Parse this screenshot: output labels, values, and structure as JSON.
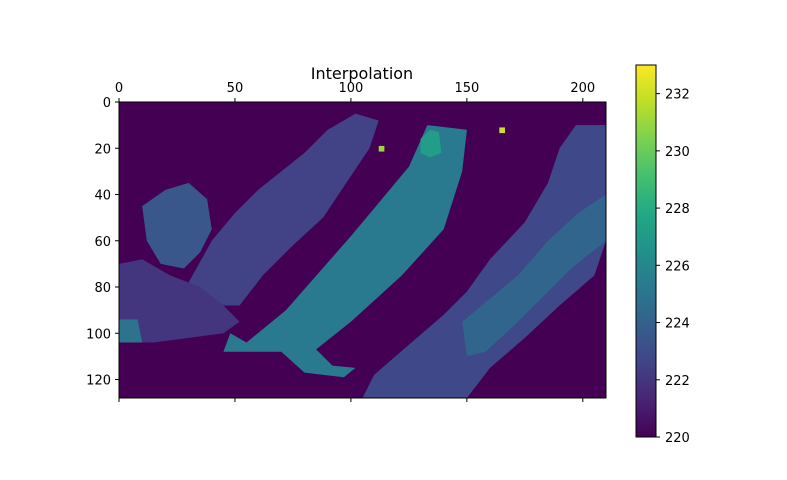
{
  "chart_data": {
    "type": "heatmap",
    "title": "Interpolation",
    "xlabel": "",
    "ylabel": "",
    "x_range": [
      0,
      210
    ],
    "y_range": [
      0,
      128
    ],
    "x_ticks": [
      0,
      50,
      100,
      150,
      200
    ],
    "y_ticks": [
      0,
      20,
      40,
      60,
      80,
      100,
      120
    ],
    "x_axis_position": "top",
    "y_axis_direction": "downward",
    "colormap": "viridis",
    "colorbar": {
      "min": 220,
      "max": 233,
      "ticks": [
        220,
        222,
        224,
        226,
        228,
        230,
        232
      ]
    },
    "background_value": 220,
    "grid": false,
    "regions": [
      {
        "name": "main diagonal band",
        "value": 225.3,
        "polygon": [
          [
            55,
            104
          ],
          [
            72,
            90
          ],
          [
            100,
            58
          ],
          [
            125,
            28
          ],
          [
            133,
            10
          ],
          [
            150,
            12
          ],
          [
            148,
            30
          ],
          [
            140,
            55
          ],
          [
            122,
            75
          ],
          [
            100,
            95
          ],
          [
            85,
            107
          ],
          [
            92,
            114
          ],
          [
            102,
            115
          ],
          [
            97,
            119
          ],
          [
            80,
            117
          ],
          [
            70,
            108
          ],
          [
            45,
            108
          ],
          [
            48,
            100
          ]
        ]
      },
      {
        "name": "right diagonal band",
        "value": 222.8,
        "polygon": [
          [
            105,
            128
          ],
          [
            110,
            118
          ],
          [
            125,
            105
          ],
          [
            140,
            92
          ],
          [
            150,
            82
          ],
          [
            160,
            68
          ],
          [
            175,
            52
          ],
          [
            185,
            35
          ],
          [
            190,
            20
          ],
          [
            197,
            10
          ],
          [
            210,
            10
          ],
          [
            210,
            60
          ],
          [
            205,
            75
          ],
          [
            190,
            88
          ],
          [
            175,
            102
          ],
          [
            160,
            115
          ],
          [
            150,
            128
          ]
        ]
      },
      {
        "name": "right band highlight",
        "value": 224.2,
        "polygon": [
          [
            148,
            95
          ],
          [
            160,
            85
          ],
          [
            172,
            75
          ],
          [
            185,
            60
          ],
          [
            198,
            48
          ],
          [
            210,
            40
          ],
          [
            210,
            60
          ],
          [
            195,
            72
          ],
          [
            182,
            85
          ],
          [
            170,
            97
          ],
          [
            158,
            108
          ],
          [
            150,
            110
          ]
        ]
      },
      {
        "name": "upper-left patch",
        "value": 222.5,
        "polygon": [
          [
            40,
            60
          ],
          [
            50,
            48
          ],
          [
            60,
            38
          ],
          [
            70,
            30
          ],
          [
            80,
            22
          ],
          [
            90,
            12
          ],
          [
            102,
            5
          ],
          [
            112,
            8
          ],
          [
            108,
            20
          ],
          [
            98,
            35
          ],
          [
            88,
            50
          ],
          [
            75,
            62
          ],
          [
            62,
            75
          ],
          [
            52,
            88
          ],
          [
            40,
            88
          ],
          [
            30,
            78
          ]
        ]
      },
      {
        "name": "left-center patch",
        "value": 223.5,
        "polygon": [
          [
            10,
            45
          ],
          [
            20,
            38
          ],
          [
            30,
            35
          ],
          [
            38,
            42
          ],
          [
            40,
            55
          ],
          [
            35,
            65
          ],
          [
            28,
            72
          ],
          [
            18,
            70
          ],
          [
            12,
            60
          ]
        ]
      },
      {
        "name": "lower-left patch",
        "value": 222.0,
        "polygon": [
          [
            0,
            70
          ],
          [
            10,
            68
          ],
          [
            22,
            75
          ],
          [
            35,
            80
          ],
          [
            45,
            88
          ],
          [
            52,
            95
          ],
          [
            45,
            100
          ],
          [
            30,
            102
          ],
          [
            15,
            104
          ],
          [
            0,
            104
          ]
        ]
      },
      {
        "name": "left edge block",
        "value": 225.0,
        "polygon": [
          [
            0,
            94
          ],
          [
            8,
            94
          ],
          [
            10,
            104
          ],
          [
            0,
            104
          ]
        ]
      },
      {
        "name": "upper hotspot",
        "value": 227.2,
        "polygon": [
          [
            130,
            16
          ],
          [
            134,
            12
          ],
          [
            138,
            13
          ],
          [
            139,
            22
          ],
          [
            134,
            24
          ],
          [
            130,
            22
          ]
        ]
      }
    ],
    "hot_pixels": [
      {
        "x": 113,
        "y": 20,
        "value": 231
      },
      {
        "x": 165,
        "y": 12,
        "value": 232
      }
    ]
  }
}
